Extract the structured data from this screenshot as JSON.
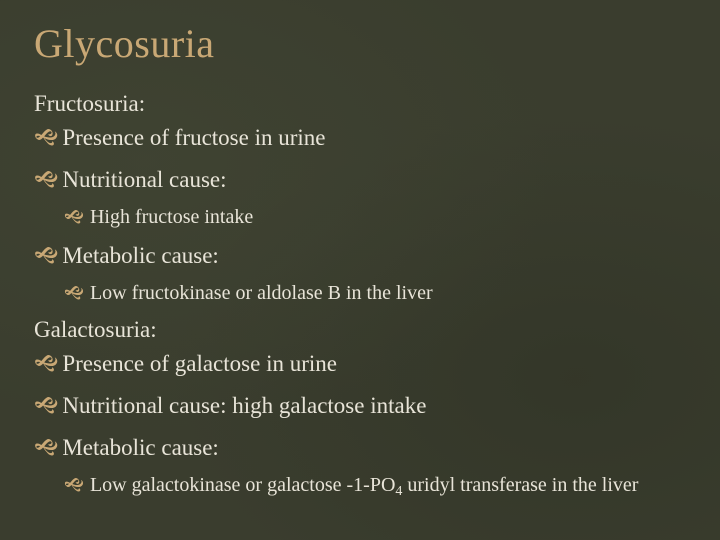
{
  "slide": {
    "title": "Glycosuria",
    "background_color": "#3a3d2e",
    "title_color": "#c9a875",
    "text_color": "#e8e4d8",
    "bullet_color": "#c9a875",
    "title_fontsize": 40,
    "level1_fontsize": 23,
    "level2_fontsize": 20,
    "font_family": "Georgia, serif",
    "sections": [
      {
        "heading": "Fructosuria:",
        "items": [
          {
            "level": 1,
            "text": "Presence of fructose in urine"
          },
          {
            "level": 1,
            "text": "Nutritional cause:"
          },
          {
            "level": 2,
            "text": "High fructose intake"
          },
          {
            "level": 1,
            "text": "Metabolic cause:"
          },
          {
            "level": 2,
            "text": "Low fructokinase or aldolase B in the liver"
          }
        ]
      },
      {
        "heading": "Galactosuria:",
        "items": [
          {
            "level": 1,
            "text": "Presence of galactose in urine"
          },
          {
            "level": 1,
            "text": "Nutritional cause: high galactose intake"
          },
          {
            "level": 1,
            "text": "Metabolic cause:"
          },
          {
            "level": 2,
            "text_html": "Low galactokinase or galactose -1-PO4 uridyl transferase in the liver",
            "text": "Low galactokinase or galactose -1-PO4 uridyl transferase in the liver"
          }
        ]
      }
    ],
    "bullet_glyph": "⸽"
  }
}
